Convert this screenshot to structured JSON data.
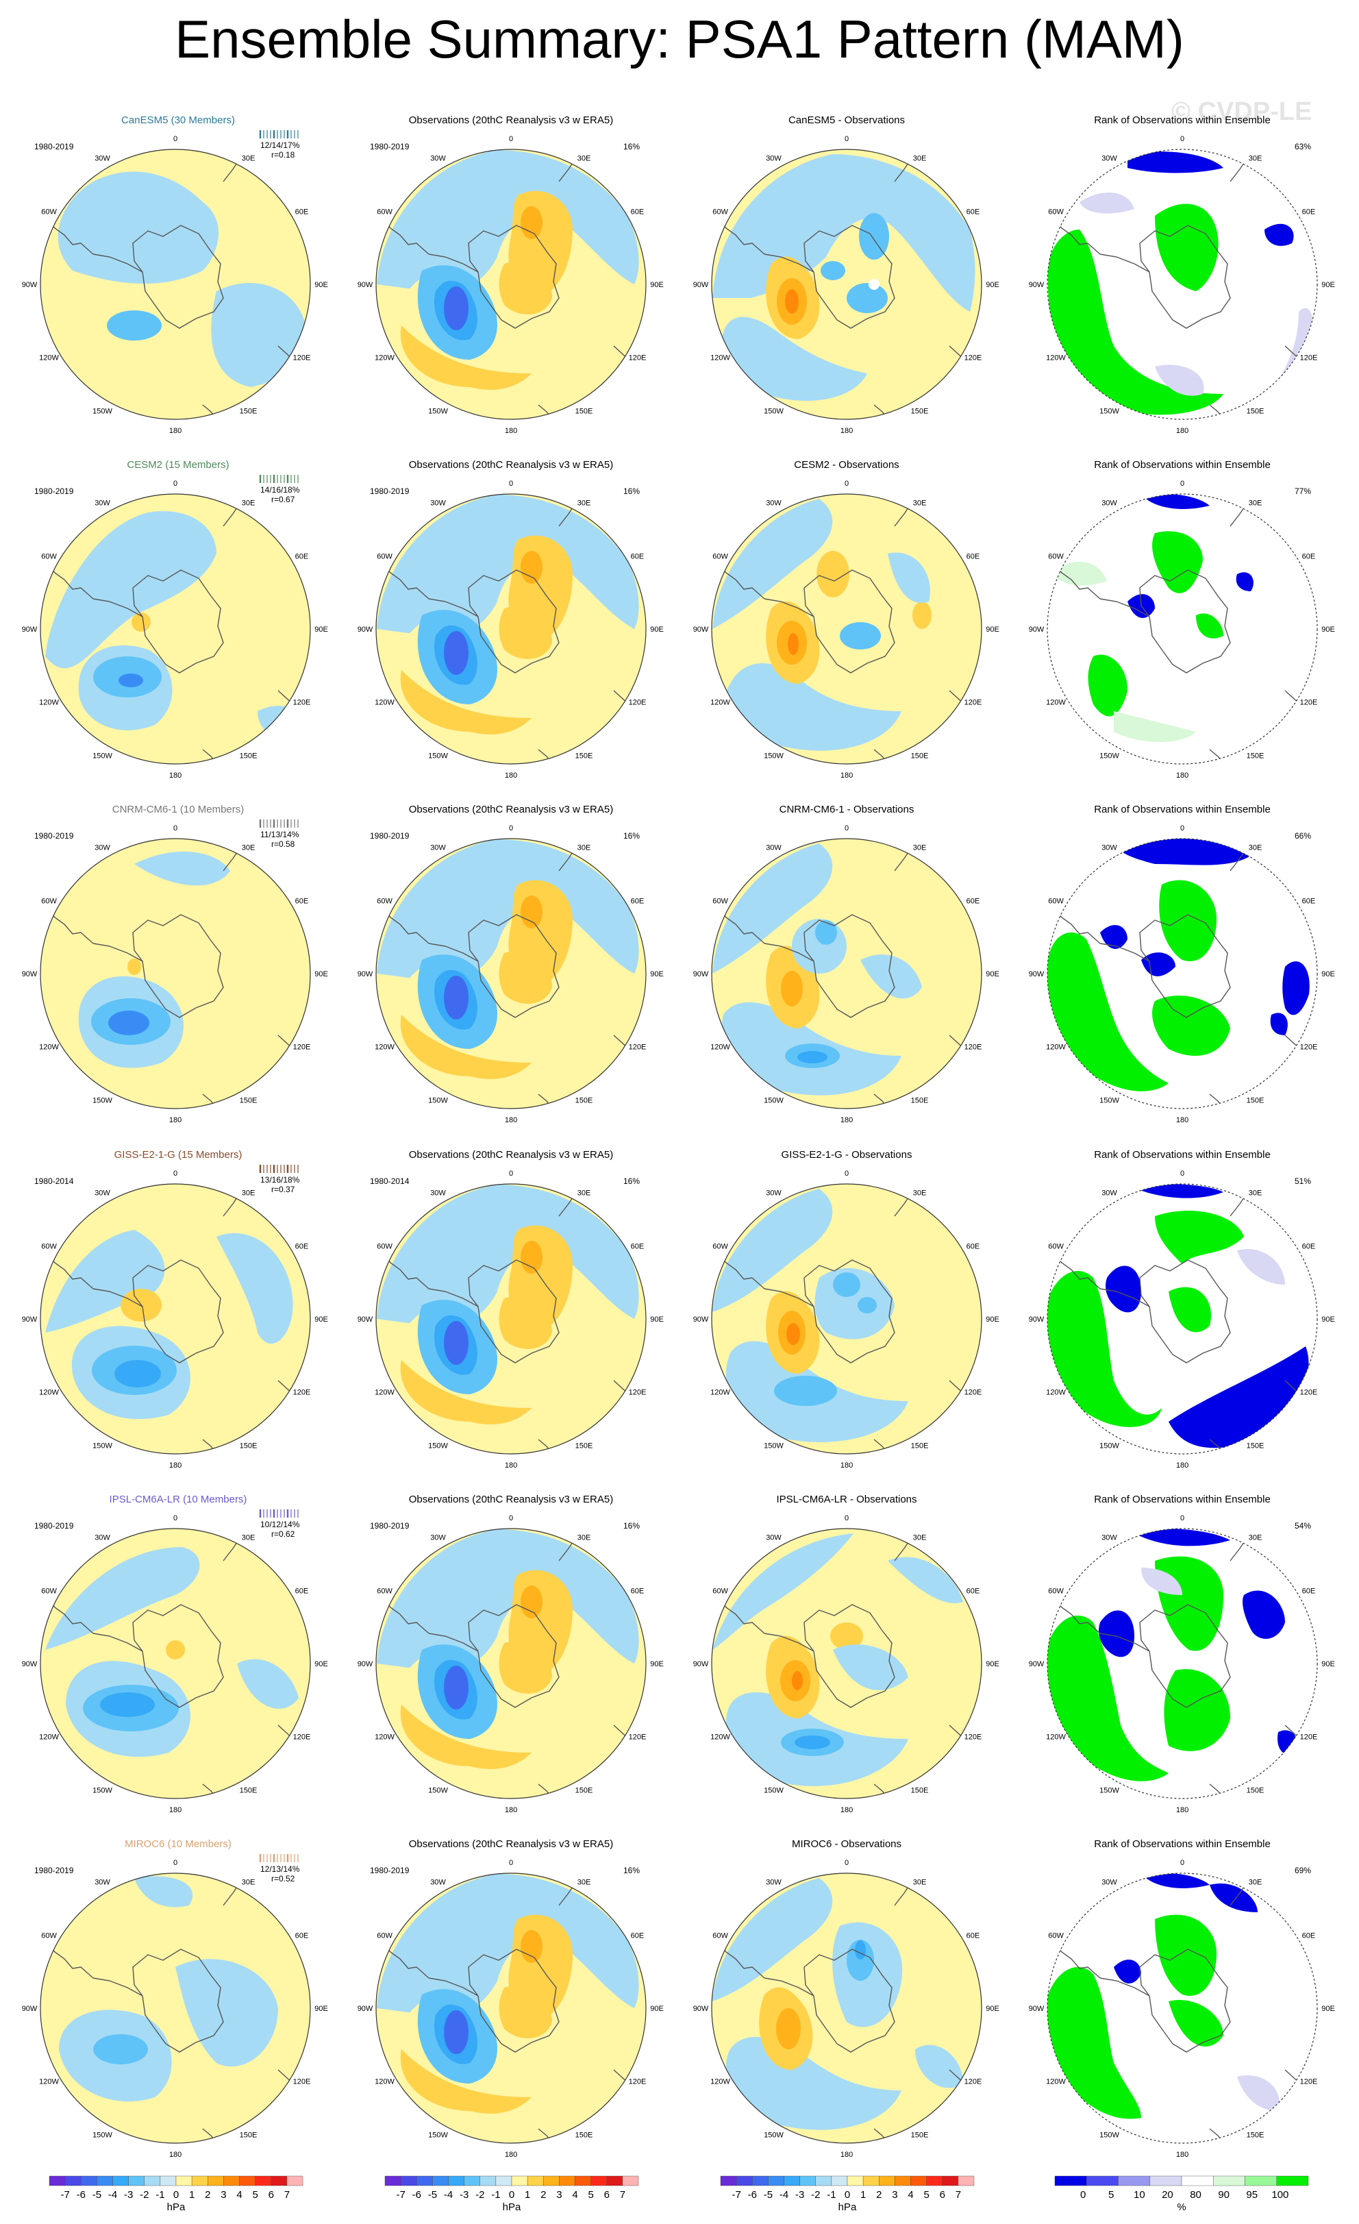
{
  "title": "Ensemble Summary: PSA1 Pattern (MAM)",
  "watermark": "© CVDP-LE",
  "column_titles": {
    "obs": "Observations (20thC Reanalysis v3 w ERA5)",
    "rank": "Rank of Observations within Ensemble"
  },
  "lon_labels": [
    "0",
    "30E",
    "60E",
    "90E",
    "120E",
    "150E",
    "180",
    "150W",
    "120W",
    "90W",
    "60W",
    "30W"
  ],
  "rows": [
    {
      "model": "CanESM5 (30 Members)",
      "model_color": "#2b7a9b",
      "diff_title": "CanESM5 - Observations",
      "period": "1980-2019",
      "stats": "12/14/17%",
      "corr": "r=0.18",
      "obs_pct": "16%",
      "rank_pct": "63%"
    },
    {
      "model": "CESM2 (15 Members)",
      "model_color": "#4f8a5a",
      "diff_title": "CESM2 - Observations",
      "period": "1980-2019",
      "stats": "14/16/18%",
      "corr": "r=0.67",
      "obs_pct": "16%",
      "rank_pct": "77%"
    },
    {
      "model": "CNRM-CM6-1 (10 Members)",
      "model_color": "#777777",
      "diff_title": "CNRM-CM6-1 - Observations",
      "period": "1980-2019",
      "stats": "11/13/14%",
      "corr": "r=0.58",
      "obs_pct": "16%",
      "rank_pct": "66%"
    },
    {
      "model": "GISS-E2-1-G (15 Members)",
      "model_color": "#8a4a2a",
      "diff_title": "GISS-E2-1-G - Observations",
      "period": "1980-2014",
      "stats": "13/16/18%",
      "corr": "r=0.37",
      "obs_pct": "16%",
      "rank_pct": "51%"
    },
    {
      "model": "IPSL-CM6A-LR (10 Members)",
      "model_color": "#6a5acd",
      "diff_title": "IPSL-CM6A-LR - Observations",
      "period": "1980-2019",
      "stats": "10/12/14%",
      "corr": "r=0.62",
      "obs_pct": "16%",
      "rank_pct": "54%"
    },
    {
      "model": "MIROC6 (10 Members)",
      "model_color": "#d9a070",
      "diff_title": "MIROC6 - Observations",
      "period": "1980-2019",
      "stats": "12/13/14%",
      "corr": "r=0.52",
      "obs_pct": "16%",
      "rank_pct": "69%"
    }
  ],
  "colorbar_hpa": {
    "labels": [
      "-7",
      "-6",
      "-5",
      "-4",
      "-3",
      "-2",
      "-1",
      "0",
      "1",
      "2",
      "3",
      "4",
      "5",
      "6",
      "7"
    ],
    "colors": [
      "#6a2bd9",
      "#4a4ae8",
      "#3f6af0",
      "#3a8cf5",
      "#36a9f7",
      "#5fc3f7",
      "#a6dbf5",
      "#cfe8f5",
      "#fff6a6",
      "#ffd24a",
      "#ffb21a",
      "#ff8a0a",
      "#ff5a0a",
      "#ff2a1a",
      "#e01a1a",
      "#ffb3b3"
    ],
    "unit": "hPa"
  },
  "colorbar_rank": {
    "labels": [
      "0",
      "5",
      "10",
      "20",
      "80",
      "90",
      "95",
      "100"
    ],
    "colors": [
      "#0000e6",
      "#4a4af0",
      "#9898f0",
      "#d8d8f4",
      "#ffffff",
      "#d8f8d8",
      "#98f898",
      "#00f000"
    ],
    "unit": "%"
  },
  "colors": {
    "neg1": "#a6dbf5",
    "neg2": "#5fc3f7",
    "neg3": "#36a9f7",
    "neg4": "#3a8cf5",
    "neg5": "#3f6af0",
    "pos1": "#fff6a6",
    "pos2": "#ffd24a",
    "pos3": "#ffb21a",
    "pos4": "#ff8a0a",
    "rank_blue": "#0000e6",
    "rank_lblue": "#d8d8f4",
    "rank_green": "#00f000",
    "rank_lgreen": "#d8f8d8"
  }
}
